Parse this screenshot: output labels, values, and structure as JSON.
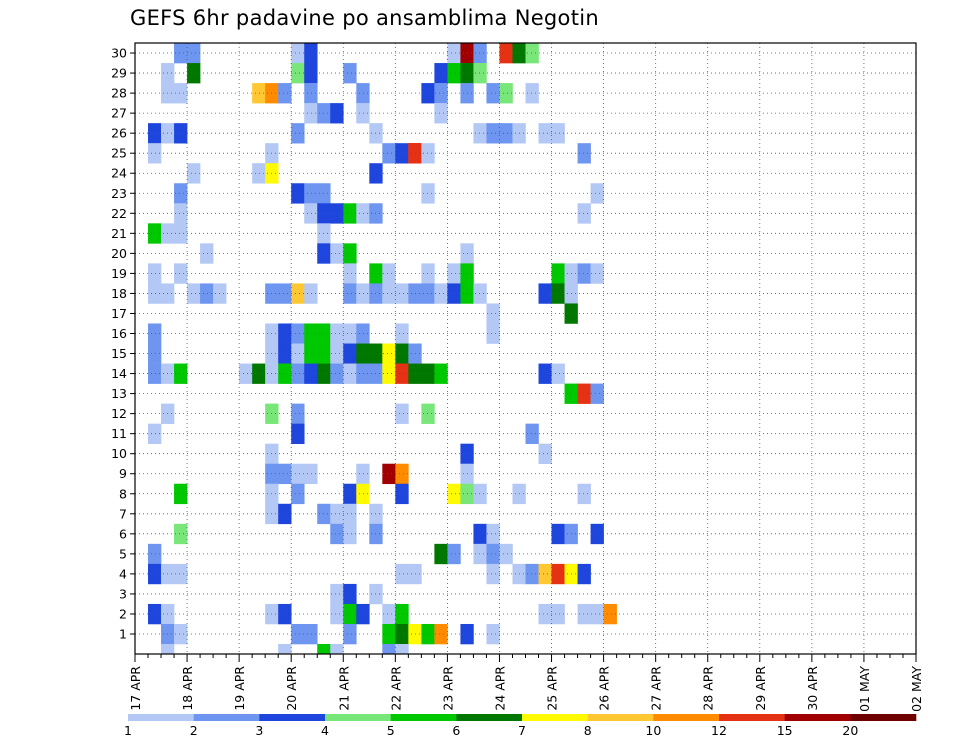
{
  "chart_data": {
    "type": "heatmap",
    "title": "GEFS 6hr padavine po ansamblima Negotin",
    "xlabel": "",
    "ylabel": "",
    "x_ticks": [
      "17 APR",
      "18 APR",
      "19 APR",
      "20 APR",
      "21 APR",
      "22 APR",
      "23 APR",
      "24 APR",
      "25 APR",
      "26 APR",
      "27 APR",
      "28 APR",
      "29 APR",
      "30 APR",
      "01 MAY",
      "02 MAY"
    ],
    "y_members": [
      1,
      2,
      3,
      4,
      5,
      6,
      7,
      8,
      9,
      10,
      11,
      12,
      13,
      14,
      15,
      16,
      17,
      18,
      19,
      20,
      21,
      22,
      23,
      24,
      25,
      26,
      27,
      28,
      29,
      30
    ],
    "time_steps_per_day": 4,
    "time_step_hours": 6,
    "grid": true,
    "colorbar": {
      "labels": [
        "1",
        "2",
        "3",
        "4",
        "5",
        "6",
        "7",
        "8",
        "10",
        "12",
        "15",
        "20"
      ],
      "colors": [
        "#b4c8f5",
        "#6e96f0",
        "#1e46dc",
        "#78e678",
        "#00c800",
        "#007800",
        "#fffa00",
        "#ffc832",
        "#ff8c00",
        "#e63214",
        "#a00000",
        "#6e0000"
      ]
    },
    "cells": [
      [
        30,
        3,
        2
      ],
      [
        30,
        4,
        2
      ],
      [
        30,
        12,
        1
      ],
      [
        30,
        13,
        3
      ],
      [
        30,
        24,
        1
      ],
      [
        30,
        25,
        11
      ],
      [
        30,
        26,
        2
      ],
      [
        30,
        28,
        10
      ],
      [
        30,
        29,
        6
      ],
      [
        30,
        30,
        4
      ],
      [
        29,
        2,
        1
      ],
      [
        29,
        4,
        6
      ],
      [
        29,
        12,
        4
      ],
      [
        29,
        13,
        3
      ],
      [
        29,
        16,
        2
      ],
      [
        29,
        23,
        3
      ],
      [
        29,
        24,
        5
      ],
      [
        29,
        25,
        6
      ],
      [
        29,
        26,
        4
      ],
      [
        28,
        2,
        1
      ],
      [
        28,
        3,
        1
      ],
      [
        28,
        9,
        8
      ],
      [
        28,
        10,
        9
      ],
      [
        28,
        11,
        2
      ],
      [
        28,
        13,
        2
      ],
      [
        28,
        17,
        2
      ],
      [
        28,
        22,
        3
      ],
      [
        28,
        23,
        2
      ],
      [
        28,
        25,
        2
      ],
      [
        28,
        27,
        2
      ],
      [
        28,
        28,
        4
      ],
      [
        28,
        30,
        1
      ],
      [
        27,
        13,
        1
      ],
      [
        27,
        14,
        2
      ],
      [
        27,
        15,
        3
      ],
      [
        27,
        17,
        1
      ],
      [
        27,
        23,
        1
      ],
      [
        26,
        1,
        3
      ],
      [
        26,
        2,
        1
      ],
      [
        26,
        3,
        3
      ],
      [
        26,
        12,
        2
      ],
      [
        26,
        18,
        1
      ],
      [
        26,
        26,
        1
      ],
      [
        26,
        27,
        2
      ],
      [
        26,
        28,
        2
      ],
      [
        26,
        29,
        1
      ],
      [
        26,
        31,
        1
      ],
      [
        26,
        32,
        1
      ],
      [
        25,
        1,
        1
      ],
      [
        25,
        10,
        1
      ],
      [
        25,
        19,
        2
      ],
      [
        25,
        20,
        3
      ],
      [
        25,
        21,
        10
      ],
      [
        25,
        21,
        10
      ],
      [
        25,
        21,
        10
      ],
      [
        25,
        22,
        1
      ],
      [
        25,
        34,
        2
      ],
      [
        24,
        4,
        1
      ],
      [
        24,
        9,
        1
      ],
      [
        24,
        10,
        7
      ],
      [
        24,
        18,
        3
      ],
      [
        23,
        3,
        2
      ],
      [
        23,
        12,
        3
      ],
      [
        23,
        13,
        2
      ],
      [
        23,
        14,
        2
      ],
      [
        23,
        22,
        1
      ],
      [
        23,
        35,
        1
      ],
      [
        22,
        3,
        1
      ],
      [
        22,
        13,
        1
      ],
      [
        22,
        14,
        3
      ],
      [
        22,
        15,
        3
      ],
      [
        22,
        16,
        5
      ],
      [
        22,
        17,
        1
      ],
      [
        22,
        18,
        2
      ],
      [
        22,
        34,
        1
      ],
      [
        21,
        1,
        5
      ],
      [
        21,
        2,
        1
      ],
      [
        21,
        3,
        1
      ],
      [
        21,
        14,
        1
      ],
      [
        20,
        5,
        1
      ],
      [
        20,
        14,
        3
      ],
      [
        20,
        15,
        1
      ],
      [
        20,
        16,
        5
      ],
      [
        20,
        25,
        1
      ],
      [
        19,
        1,
        1
      ],
      [
        19,
        3,
        1
      ],
      [
        19,
        16,
        1
      ],
      [
        19,
        18,
        5
      ],
      [
        19,
        19,
        1
      ],
      [
        19,
        22,
        1
      ],
      [
        19,
        24,
        1
      ],
      [
        19,
        25,
        5
      ],
      [
        19,
        32,
        5
      ],
      [
        19,
        33,
        1
      ],
      [
        19,
        34,
        2
      ],
      [
        19,
        35,
        1
      ],
      [
        18,
        1,
        1
      ],
      [
        18,
        2,
        1
      ],
      [
        18,
        4,
        1
      ],
      [
        18,
        5,
        2
      ],
      [
        18,
        6,
        1
      ],
      [
        18,
        10,
        2
      ],
      [
        18,
        11,
        2
      ],
      [
        18,
        12,
        8
      ],
      [
        18,
        13,
        1
      ],
      [
        18,
        16,
        2
      ],
      [
        18,
        17,
        1
      ],
      [
        18,
        18,
        2
      ],
      [
        18,
        19,
        1
      ],
      [
        18,
        20,
        1
      ],
      [
        18,
        21,
        2
      ],
      [
        18,
        22,
        2
      ],
      [
        18,
        23,
        1
      ],
      [
        18,
        24,
        3
      ],
      [
        18,
        25,
        5
      ],
      [
        18,
        26,
        1
      ],
      [
        18,
        31,
        3
      ],
      [
        18,
        32,
        6
      ],
      [
        18,
        33,
        1
      ],
      [
        17,
        27,
        1
      ],
      [
        17,
        33,
        6
      ],
      [
        16,
        1,
        2
      ],
      [
        16,
        10,
        1
      ],
      [
        16,
        11,
        3
      ],
      [
        16,
        12,
        2
      ],
      [
        16,
        13,
        5
      ],
      [
        16,
        14,
        5
      ],
      [
        16,
        15,
        1
      ],
      [
        16,
        16,
        1
      ],
      [
        16,
        17,
        2
      ],
      [
        16,
        20,
        1
      ],
      [
        16,
        27,
        1
      ],
      [
        15,
        1,
        2
      ],
      [
        15,
        10,
        1
      ],
      [
        15,
        11,
        3
      ],
      [
        15,
        12,
        1
      ],
      [
        15,
        13,
        5
      ],
      [
        15,
        14,
        5
      ],
      [
        15,
        15,
        1
      ],
      [
        15,
        16,
        3
      ],
      [
        15,
        17,
        6
      ],
      [
        15,
        18,
        6
      ],
      [
        15,
        19,
        7
      ],
      [
        15,
        20,
        6
      ],
      [
        15,
        21,
        2
      ],
      [
        14,
        1,
        2
      ],
      [
        14,
        2,
        1
      ],
      [
        14,
        3,
        5
      ],
      [
        14,
        8,
        1
      ],
      [
        14,
        9,
        6
      ],
      [
        14,
        10,
        1
      ],
      [
        14,
        11,
        5
      ],
      [
        14,
        12,
        2
      ],
      [
        14,
        13,
        3
      ],
      [
        14,
        14,
        6
      ],
      [
        14,
        15,
        2
      ],
      [
        14,
        16,
        1
      ],
      [
        14,
        17,
        2
      ],
      [
        14,
        18,
        2
      ],
      [
        14,
        19,
        7
      ],
      [
        14,
        20,
        10
      ],
      [
        14,
        21,
        6
      ],
      [
        14,
        22,
        6
      ],
      [
        14,
        23,
        5
      ],
      [
        14,
        31,
        3
      ],
      [
        14,
        32,
        1
      ],
      [
        13,
        33,
        5
      ],
      [
        13,
        34,
        10
      ],
      [
        13,
        35,
        2
      ],
      [
        12,
        2,
        1
      ],
      [
        12,
        10,
        4
      ],
      [
        12,
        12,
        2
      ],
      [
        12,
        20,
        1
      ],
      [
        12,
        22,
        4
      ],
      [
        11,
        1,
        1
      ],
      [
        11,
        12,
        3
      ],
      [
        11,
        30,
        2
      ],
      [
        10,
        10,
        1
      ],
      [
        10,
        25,
        3
      ],
      [
        10,
        31,
        1
      ],
      [
        9,
        10,
        2
      ],
      [
        9,
        11,
        2
      ],
      [
        9,
        12,
        1
      ],
      [
        9,
        13,
        1
      ],
      [
        9,
        17,
        1
      ],
      [
        9,
        19,
        11
      ],
      [
        9,
        20,
        9
      ],
      [
        9,
        25,
        1
      ],
      [
        8,
        3,
        5
      ],
      [
        8,
        10,
        1
      ],
      [
        8,
        12,
        2
      ],
      [
        8,
        16,
        3
      ],
      [
        8,
        17,
        7
      ],
      [
        8,
        20,
        3
      ],
      [
        8,
        24,
        7
      ],
      [
        8,
        25,
        4
      ],
      [
        8,
        26,
        1
      ],
      [
        8,
        29,
        1
      ],
      [
        8,
        34,
        1
      ],
      [
        7,
        10,
        1
      ],
      [
        7,
        11,
        3
      ],
      [
        7,
        14,
        2
      ],
      [
        7,
        15,
        1
      ],
      [
        7,
        16,
        1
      ],
      [
        7,
        18,
        1
      ],
      [
        6,
        3,
        4
      ],
      [
        6,
        15,
        2
      ],
      [
        6,
        16,
        1
      ],
      [
        6,
        18,
        2
      ],
      [
        6,
        26,
        3
      ],
      [
        6,
        27,
        1
      ],
      [
        6,
        32,
        3
      ],
      [
        6,
        33,
        2
      ],
      [
        6,
        35,
        3
      ],
      [
        5,
        1,
        2
      ],
      [
        5,
        23,
        6
      ],
      [
        5,
        24,
        2
      ],
      [
        5,
        26,
        1
      ],
      [
        5,
        27,
        2
      ],
      [
        5,
        28,
        1
      ],
      [
        4,
        1,
        3
      ],
      [
        4,
        2,
        1
      ],
      [
        4,
        3,
        1
      ],
      [
        4,
        20,
        1
      ],
      [
        4,
        21,
        1
      ],
      [
        4,
        27,
        1
      ],
      [
        4,
        29,
        1
      ],
      [
        4,
        30,
        2
      ],
      [
        4,
        31,
        8
      ],
      [
        4,
        32,
        10
      ],
      [
        4,
        33,
        7
      ],
      [
        4,
        34,
        3
      ],
      [
        3,
        15,
        1
      ],
      [
        3,
        16,
        3
      ],
      [
        3,
        18,
        1
      ],
      [
        2,
        1,
        3
      ],
      [
        2,
        2,
        1
      ],
      [
        2,
        10,
        1
      ],
      [
        2,
        11,
        3
      ],
      [
        2,
        15,
        1
      ],
      [
        2,
        16,
        5
      ],
      [
        2,
        17,
        3
      ],
      [
        2,
        19,
        1
      ],
      [
        2,
        20,
        5
      ],
      [
        2,
        31,
        1
      ],
      [
        2,
        32,
        1
      ],
      [
        2,
        34,
        1
      ],
      [
        2,
        35,
        1
      ],
      [
        2,
        36,
        9
      ],
      [
        1,
        2,
        2
      ],
      [
        1,
        3,
        1
      ],
      [
        1,
        12,
        2
      ],
      [
        1,
        13,
        2
      ],
      [
        1,
        16,
        2
      ],
      [
        1,
        19,
        5
      ],
      [
        1,
        20,
        6
      ],
      [
        1,
        21,
        7
      ],
      [
        1,
        22,
        5
      ],
      [
        1,
        23,
        9
      ],
      [
        1,
        25,
        3
      ],
      [
        1,
        27,
        1
      ],
      [
        0,
        2,
        1
      ],
      [
        0,
        11,
        1
      ],
      [
        0,
        14,
        5
      ],
      [
        0,
        15,
        1
      ],
      [
        0,
        19,
        2
      ],
      [
        0,
        20,
        1
      ]
    ]
  }
}
